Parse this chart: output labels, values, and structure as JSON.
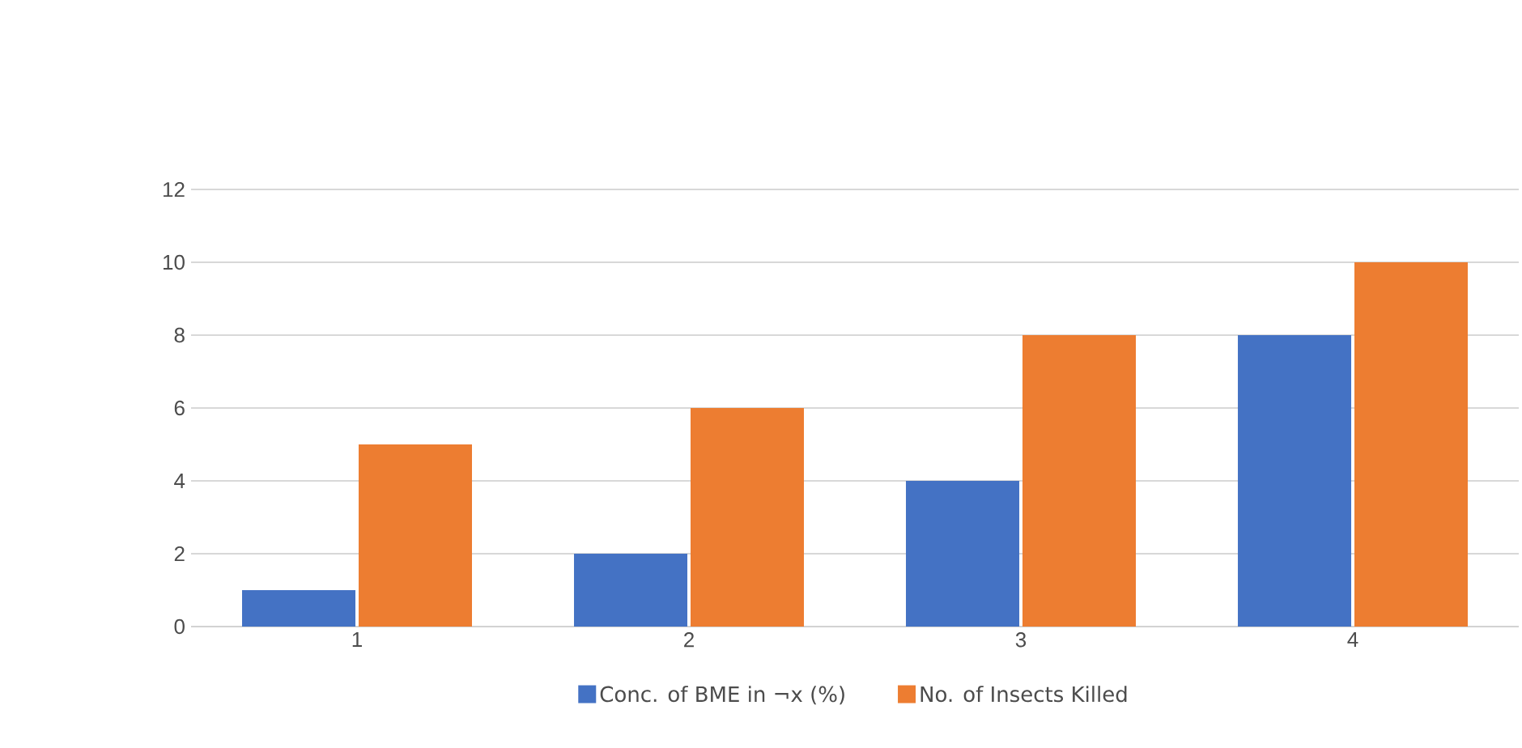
{
  "chart_data": {
    "type": "bar",
    "categories": [
      "1",
      "2",
      "3",
      "4"
    ],
    "series": [
      {
        "name": "Conc. of BME in ¬x (%)",
        "color": "#4472c4",
        "values": [
          1,
          2,
          4,
          8
        ]
      },
      {
        "name": "No. of Insects Killed",
        "color": "#ed7d31",
        "values": [
          5,
          6,
          8,
          10
        ]
      }
    ],
    "ylim": [
      0,
      12
    ],
    "yticks": [
      0,
      2,
      4,
      6,
      8,
      10,
      12
    ],
    "grid": "y",
    "legend": "bottom"
  }
}
